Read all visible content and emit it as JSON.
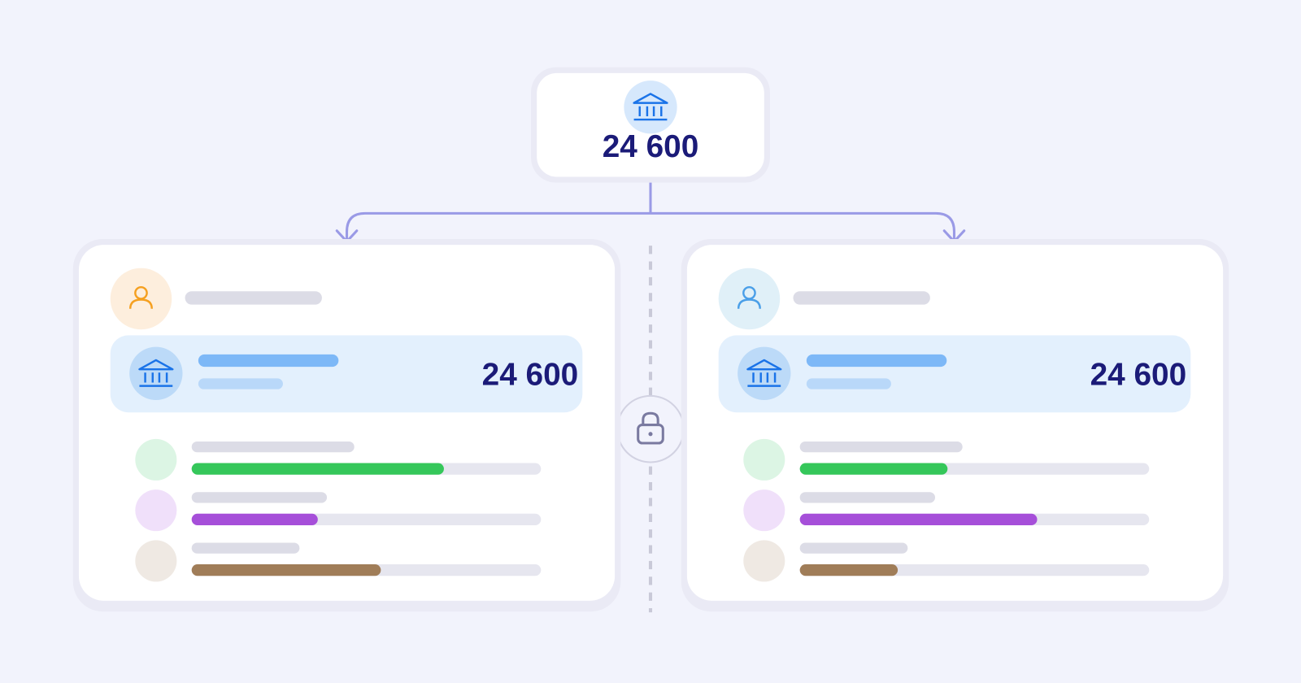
{
  "top_node": {
    "amount": "24 600"
  },
  "accounts": [
    {
      "amount": "24 600"
    },
    {
      "amount": "24 600"
    }
  ]
}
